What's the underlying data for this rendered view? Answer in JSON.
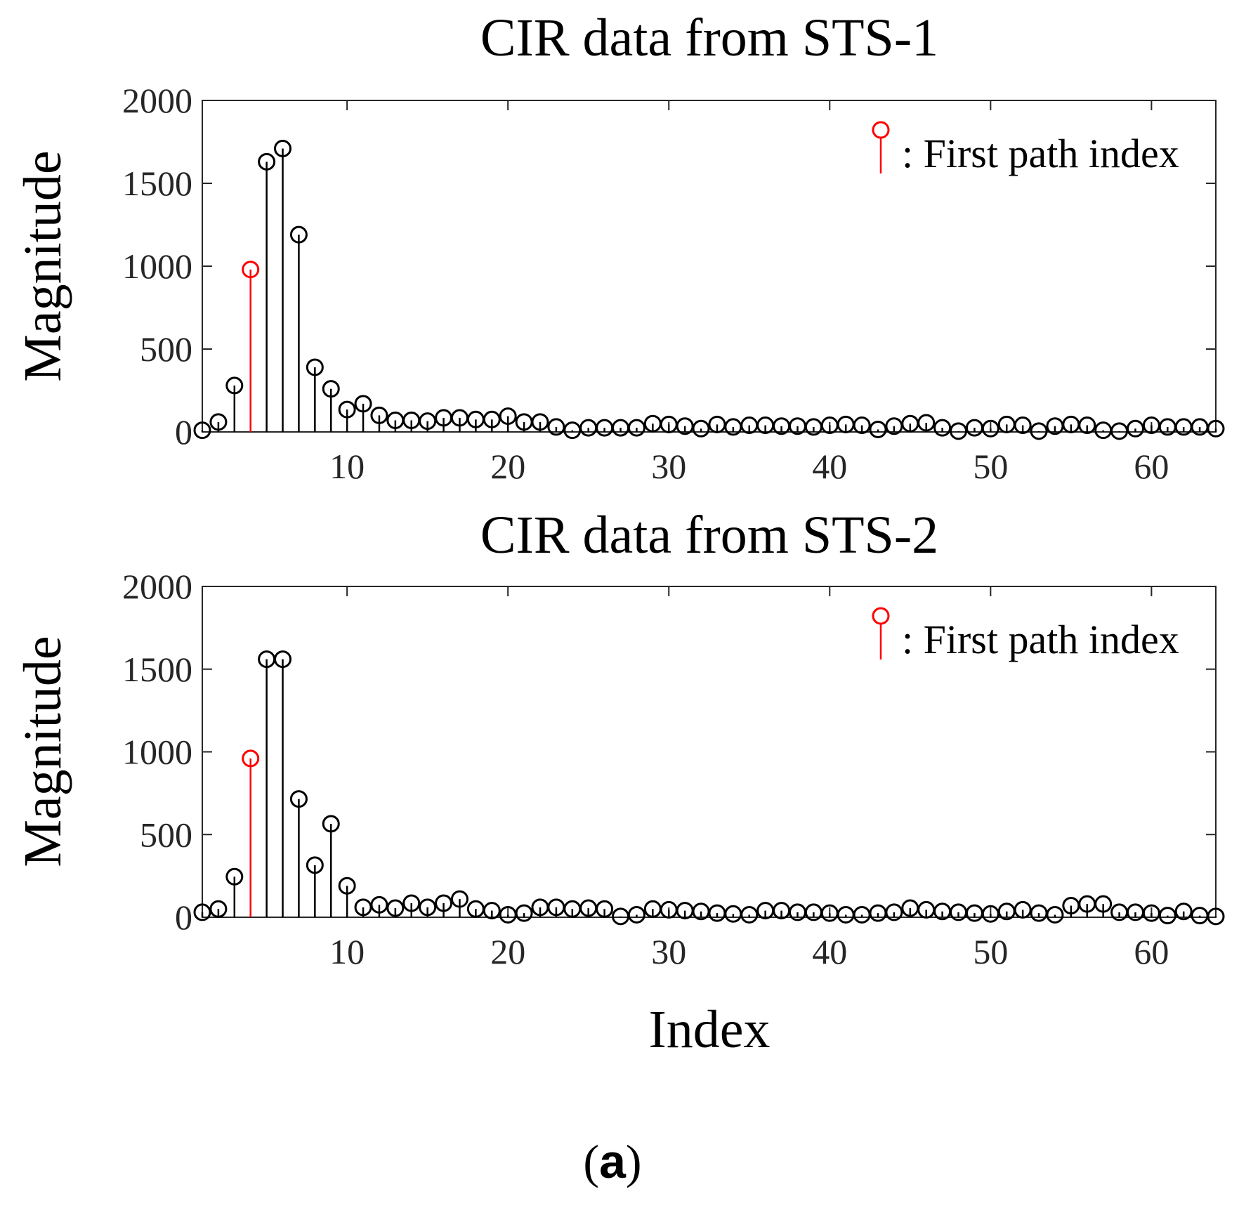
{
  "figure": {
    "panel_label": "(a)"
  },
  "colors": {
    "stem": "#000000",
    "first_path": "#ff0000",
    "axes": "#262626",
    "background": "#ffffff"
  },
  "chart_data": [
    {
      "type": "bar",
      "title": "CIR data from STS-1",
      "xlabel": "",
      "ylabel": "Magnitude",
      "legend_label": ": First path index",
      "highlight_index": 4,
      "xlim": [
        1,
        64
      ],
      "ylim": [
        0,
        2000
      ],
      "xticks": [
        10,
        20,
        30,
        40,
        50,
        60
      ],
      "yticks": [
        0,
        500,
        1000,
        1500,
        2000
      ],
      "grid": false,
      "x": [
        1,
        2,
        3,
        4,
        5,
        6,
        7,
        8,
        9,
        10,
        11,
        12,
        13,
        14,
        15,
        16,
        17,
        18,
        19,
        20,
        21,
        22,
        23,
        24,
        25,
        26,
        27,
        28,
        29,
        30,
        31,
        32,
        33,
        34,
        35,
        36,
        37,
        38,
        39,
        40,
        41,
        42,
        43,
        44,
        45,
        46,
        47,
        48,
        49,
        50,
        51,
        52,
        53,
        54,
        55,
        56,
        57,
        58,
        59,
        60,
        61,
        62,
        63,
        64
      ],
      "values": [
        10,
        60,
        280,
        980,
        1630,
        1710,
        1190,
        390,
        260,
        135,
        170,
        100,
        70,
        70,
        65,
        85,
        85,
        75,
        75,
        95,
        60,
        60,
        30,
        10,
        25,
        25,
        25,
        25,
        50,
        45,
        35,
        20,
        45,
        30,
        40,
        40,
        35,
        35,
        30,
        40,
        45,
        40,
        15,
        35,
        50,
        55,
        25,
        5,
        25,
        20,
        45,
        40,
        5,
        35,
        45,
        40,
        10,
        5,
        20,
        40,
        30,
        30,
        30,
        20
      ]
    },
    {
      "type": "bar",
      "title": "CIR data from STS-2",
      "xlabel": "Index",
      "ylabel": "Magnitude",
      "legend_label": ": First path index",
      "highlight_index": 4,
      "xlim": [
        1,
        64
      ],
      "ylim": [
        0,
        2000
      ],
      "xticks": [
        10,
        20,
        30,
        40,
        50,
        60
      ],
      "yticks": [
        0,
        500,
        1000,
        1500,
        2000
      ],
      "grid": false,
      "x": [
        1,
        2,
        3,
        4,
        5,
        6,
        7,
        8,
        9,
        10,
        11,
        12,
        13,
        14,
        15,
        16,
        17,
        18,
        19,
        20,
        21,
        22,
        23,
        24,
        25,
        26,
        27,
        28,
        29,
        30,
        31,
        32,
        33,
        34,
        35,
        36,
        37,
        38,
        39,
        40,
        41,
        42,
        43,
        44,
        45,
        46,
        47,
        48,
        49,
        50,
        51,
        52,
        53,
        54,
        55,
        56,
        57,
        58,
        59,
        60,
        61,
        62,
        63,
        64
      ],
      "values": [
        30,
        50,
        245,
        960,
        1560,
        1560,
        715,
        315,
        565,
        190,
        60,
        75,
        55,
        85,
        60,
        85,
        110,
        50,
        40,
        15,
        25,
        60,
        60,
        50,
        55,
        50,
        5,
        15,
        50,
        45,
        40,
        35,
        25,
        20,
        15,
        40,
        40,
        30,
        30,
        25,
        15,
        15,
        25,
        30,
        55,
        45,
        35,
        30,
        25,
        20,
        35,
        45,
        25,
        15,
        70,
        80,
        80,
        30,
        30,
        25,
        10,
        35,
        10,
        5
      ]
    }
  ]
}
